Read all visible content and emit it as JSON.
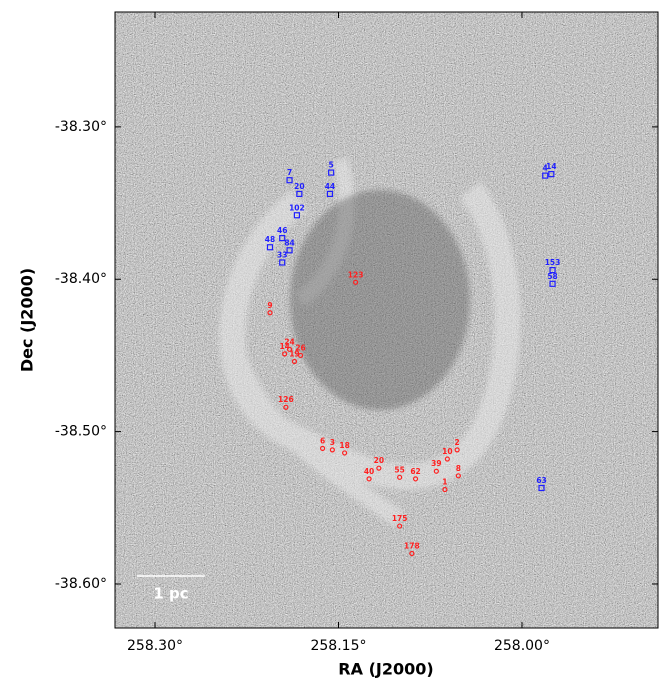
{
  "chart_data": {
    "type": "scatter",
    "x_label": "RA (J2000)",
    "y_label": "Dec (J2000)",
    "scale_bar": "1 pc",
    "xlim": [
      258.3327,
      257.8888
    ],
    "ylim": [
      -38.6289,
      -38.2246
    ],
    "xticks": [
      {
        "value": 258.3,
        "label": "258.30°"
      },
      {
        "value": 258.15,
        "label": "258.15°"
      },
      {
        "value": 258.0,
        "label": "258.00°"
      }
    ],
    "yticks": [
      {
        "value": -38.3,
        "label": "-38.30°"
      },
      {
        "value": -38.4,
        "label": "-38.40°"
      },
      {
        "value": -38.5,
        "label": "-38.50°"
      },
      {
        "value": -38.6,
        "label": "-38.60°"
      }
    ],
    "groups": [
      {
        "color": "#1f1fff",
        "marker": "square",
        "labels": [
          "7",
          "5",
          "14",
          "4",
          "20",
          "44",
          "102",
          "46",
          "48",
          "84",
          "33",
          "153",
          "58",
          "63"
        ],
        "x": [
          258.19,
          258.156,
          257.976,
          257.981,
          258.182,
          258.157,
          258.184,
          258.196,
          258.206,
          258.19,
          258.196,
          257.975,
          257.975,
          257.984
        ],
        "y": [
          -38.335,
          -38.33,
          -38.331,
          -38.332,
          -38.344,
          -38.344,
          -38.358,
          -38.373,
          -38.379,
          -38.381,
          -38.389,
          -38.394,
          -38.403,
          -38.537
        ]
      },
      {
        "color": "#ff2020",
        "marker": "circle",
        "labels": [
          "123",
          "9",
          "24",
          "14",
          "26",
          "19",
          "126",
          "6",
          "3",
          "18",
          "20",
          "40",
          "55",
          "62",
          "2",
          "10",
          "39",
          "8",
          "1",
          "175",
          "178"
        ],
        "x": [
          258.136,
          258.206,
          258.19,
          258.194,
          258.181,
          258.186,
          258.193,
          258.163,
          258.155,
          258.145,
          258.117,
          258.125,
          258.1,
          258.087,
          258.053,
          258.061,
          258.07,
          258.052,
          258.063,
          258.1,
          258.09
        ],
        "y": [
          -38.402,
          -38.422,
          -38.446,
          -38.449,
          -38.45,
          -38.454,
          -38.484,
          -38.511,
          -38.512,
          -38.514,
          -38.524,
          -38.531,
          -38.53,
          -38.531,
          -38.512,
          -38.518,
          -38.526,
          -38.529,
          -38.538,
          -38.562,
          -38.58
        ]
      }
    ]
  }
}
